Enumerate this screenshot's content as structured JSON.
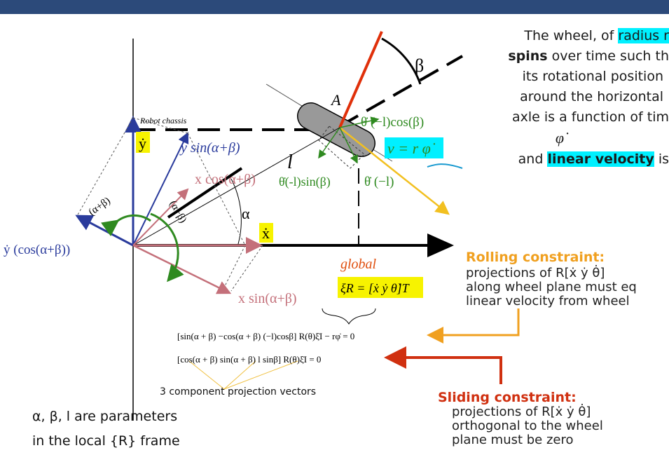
{
  "header": {
    "bar_color": "#2c4a7a"
  },
  "diagram": {
    "robot_chassis": "Robot chassis",
    "y_dot": "ẏ",
    "y_sin": "y sin(α+β)",
    "x_cos": "x cos(α+β)",
    "alpha_beta_1": "(α+β)",
    "alpha_beta_2": "(α+β)",
    "alpha": "α",
    "x_dot": "ẋ",
    "y_dot_cos": "ẏ (cos(α+β))",
    "x_sin": "x sin(α+β)",
    "point_A": "A",
    "beta": "β",
    "l": "l",
    "theta_cos": "θ̇ (−l)cos(β)",
    "theta_sin": "θ̇(-l)sin(β)",
    "theta_l": "θ̇ (−l)",
    "v_eq": "v = r φ̇",
    "global_note": "global",
    "xi_r": "ξ̇R = [ẋ  ẏ  θ̇]T",
    "eq1": "[sin(α + β)  −cos(α + β)  (−l)cosβ] R(θ)ξ̇I − rφ̇  =  0",
    "eq2": "[cos(α + β)  sin(α + β)  l sinβ] R(θ)ξ̇I  =  0",
    "projection_label": "3 component projection vectors"
  },
  "wheel_text": {
    "line1_pre": "The wheel, of ",
    "line1_hl": "radius r",
    "line2_bold": "spins",
    "line2_rest": " over time such th",
    "line3": "its rotational position",
    "line4": "around the horizontal",
    "line5": "axle is a function of tim",
    "phi_dot": "φ̇",
    "line6_pre": "and ",
    "line6_bold": "linear velocity",
    "line6_rest": " is"
  },
  "rolling": {
    "title": "Rolling  constraint:",
    "line1": "projections of R[ẋ ẏ θ̇]",
    "line2": "along wheel plane must eq",
    "line3": "linear velocity from wheel"
  },
  "sliding": {
    "title": "Sliding constraint:",
    "line1": "projections of R[ẋ ẏ θ̇]",
    "line2": "orthogonal to  the wheel",
    "line3": "plane must be zero"
  },
  "params": {
    "line1": "α, β, l are parameters",
    "line2": "in the local {R} frame"
  },
  "colors": {
    "blue": "#2a3b9c",
    "pink": "#c4707a",
    "green": "#2f8a20",
    "red": "#e0300a",
    "orange": "#f0a020",
    "yellow_arrow": "#f2c020",
    "highlight_yellow": "#f7f300",
    "highlight_cyan": "#00f0ff"
  }
}
